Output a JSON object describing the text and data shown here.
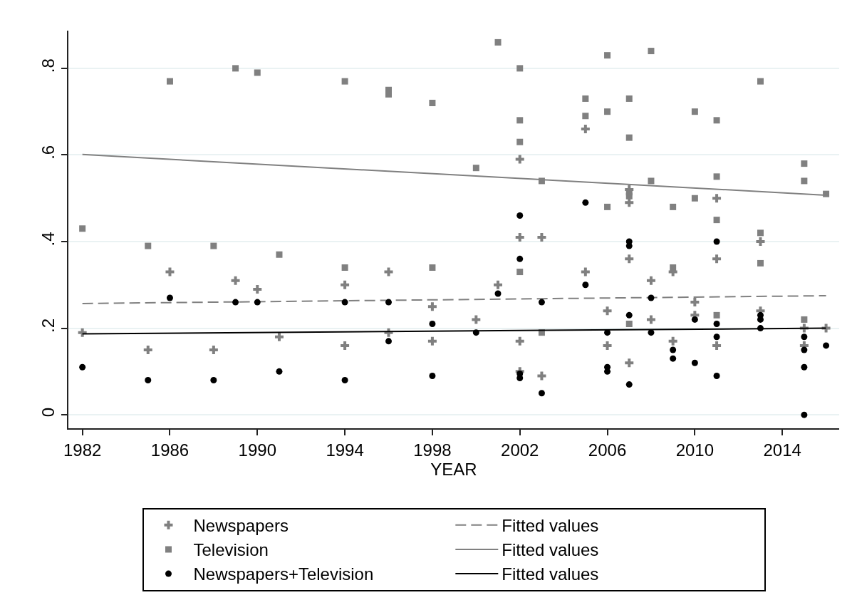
{
  "chart_data": {
    "type": "scatter",
    "xlabel": "YEAR",
    "xlim": [
      1981.36,
      2016.6
    ],
    "xticks": [
      1982,
      1986,
      1990,
      1994,
      1998,
      2002,
      2006,
      2010,
      2014
    ],
    "ylim": [
      -0.031,
      0.887
    ],
    "yticks": [
      0,
      {
        "value": 0.2,
        "label": ".2"
      },
      {
        "value": 0.4,
        "label": ".4"
      },
      {
        "value": 0.6,
        "label": ".6"
      },
      {
        "value": 0.8,
        "label": ".8"
      }
    ],
    "grid": "y",
    "legend": "bottom",
    "series": [
      {
        "name": "Newspapers",
        "marker": "cross",
        "color": "#808080",
        "x": [
          1982,
          1985,
          1986,
          1988,
          1989,
          1990,
          1991,
          1994,
          1994,
          1996,
          1996,
          1998,
          1998,
          2000,
          2001,
          2002,
          2002,
          2002,
          2002,
          2003,
          2003,
          2005,
          2005,
          2006,
          2006,
          2007,
          2007,
          2007,
          2007,
          2008,
          2008,
          2009,
          2009,
          2010,
          2010,
          2011,
          2011,
          2011,
          2013,
          2013,
          2015,
          2015,
          2016
        ],
        "values": [
          0.19,
          0.15,
          0.33,
          0.15,
          0.31,
          0.29,
          0.18,
          0.3,
          0.16,
          0.33,
          0.19,
          0.25,
          0.17,
          0.22,
          0.3,
          0.59,
          0.41,
          0.17,
          0.1,
          0.41,
          0.09,
          0.66,
          0.33,
          0.24,
          0.16,
          0.52,
          0.49,
          0.36,
          0.12,
          0.31,
          0.22,
          0.33,
          0.17,
          0.26,
          0.23,
          0.5,
          0.36,
          0.16,
          0.4,
          0.24,
          0.2,
          0.16,
          0.2
        ]
      },
      {
        "name": "Fitted values",
        "type": "line",
        "marker": "none",
        "line_style": "dashed",
        "color": "#808080",
        "x": [
          1982,
          2016
        ],
        "values": [
          0.257,
          0.275
        ]
      },
      {
        "name": "Television",
        "marker": "square",
        "color": "#808080",
        "x": [
          1982,
          1985,
          1986,
          1988,
          1989,
          1990,
          1991,
          1994,
          1994,
          1996,
          1996,
          1998,
          1998,
          2000,
          2001,
          2002,
          2002,
          2002,
          2002,
          2003,
          2003,
          2005,
          2005,
          2006,
          2006,
          2006,
          2007,
          2007,
          2007,
          2007,
          2007,
          2008,
          2008,
          2009,
          2009,
          2010,
          2010,
          2011,
          2011,
          2011,
          2011,
          2013,
          2013,
          2013,
          2015,
          2015,
          2015,
          2016
        ],
        "values": [
          0.43,
          0.39,
          0.77,
          0.39,
          0.8,
          0.79,
          0.37,
          0.77,
          0.34,
          0.75,
          0.74,
          0.72,
          0.34,
          0.57,
          0.86,
          0.8,
          0.68,
          0.63,
          0.33,
          0.54,
          0.19,
          0.73,
          0.69,
          0.83,
          0.7,
          0.48,
          0.73,
          0.64,
          0.514,
          0.505,
          0.21,
          0.84,
          0.54,
          0.48,
          0.34,
          0.7,
          0.5,
          0.68,
          0.55,
          0.45,
          0.23,
          0.77,
          0.42,
          0.35,
          0.58,
          0.54,
          0.22,
          0.51
        ]
      },
      {
        "name": "Fitted values",
        "type": "line",
        "marker": "none",
        "line_style": "solid",
        "color": "#808080",
        "x": [
          1982,
          2016
        ],
        "values": [
          0.601,
          0.507
        ]
      },
      {
        "name": "Newspapers+Television",
        "marker": "circle",
        "color": "#000000",
        "x": [
          1982,
          1985,
          1986,
          1988,
          1989,
          1990,
          1991,
          1994,
          1994,
          1996,
          1996,
          1998,
          1998,
          2000,
          2001,
          2002,
          2002,
          2002,
          2002,
          2003,
          2003,
          2005,
          2005,
          2006,
          2006,
          2006,
          2007,
          2007,
          2007,
          2007,
          2008,
          2008,
          2009,
          2009,
          2010,
          2010,
          2011,
          2011,
          2011,
          2011,
          2013,
          2013,
          2013,
          2015,
          2015,
          2015,
          2015,
          2016
        ],
        "values": [
          0.11,
          0.08,
          0.27,
          0.08,
          0.26,
          0.26,
          0.1,
          0.26,
          0.08,
          0.26,
          0.17,
          0.21,
          0.09,
          0.19,
          0.28,
          0.46,
          0.36,
          0.095,
          0.085,
          0.26,
          0.05,
          0.49,
          0.3,
          0.19,
          0.11,
          0.1,
          0.4,
          0.39,
          0.23,
          0.07,
          0.27,
          0.19,
          0.15,
          0.13,
          0.22,
          0.12,
          0.4,
          0.21,
          0.18,
          0.09,
          0.23,
          0.22,
          0.2,
          0.18,
          0.15,
          0.11,
          0.0,
          0.16
        ]
      },
      {
        "name": "Fitted values",
        "type": "line",
        "marker": "none",
        "line_style": "solid",
        "color": "#000000",
        "x": [
          1982,
          2016
        ],
        "values": [
          0.187,
          0.2
        ]
      }
    ]
  }
}
